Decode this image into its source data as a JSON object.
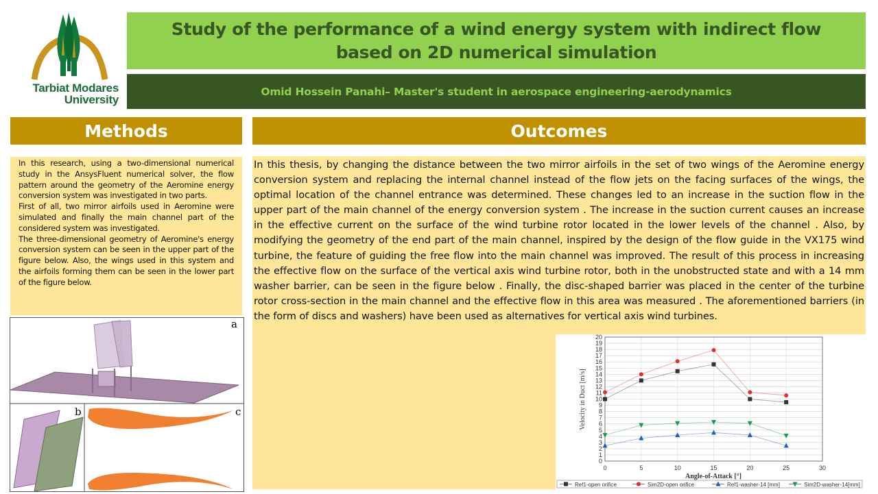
{
  "logo": {
    "text_line1": "Tarbiat Modares",
    "text_line2": "University",
    "colors": {
      "arch": "#c8961e",
      "trees": "#0f7a3a"
    }
  },
  "header": {
    "title": "Study of the performance of a wind energy system with indirect flow based on 2D numerical simulation",
    "author": "Omid Hossein Panahi– Master's student in aerospace engineering-aerodynamics"
  },
  "methods": {
    "heading": "Methods",
    "paragraphs": [
      "In this research, using a two-dimensional numerical study in the AnsysFluent numerical solver, the flow pattern around the geometry of the Aeromine energy conversion system was investigated in two parts.",
      "First of all, two mirror airfoils used in Aeromine were simulated and finally the main channel part of the considered system was investigated.",
      "The three-dimensional geometry of Aeromine's energy conversion system can be seen in the upper part of the figure below. Also, the wings used in this system and the airfoils forming them can be seen in the lower part of the figure below."
    ],
    "figure_labels": {
      "a": "a",
      "b": "b",
      "c": "c"
    }
  },
  "outcomes": {
    "heading": "Outcomes",
    "text": "In this thesis, by changing the distance between the two mirror airfoils in the set of two wings of the Aeromine energy conversion system and replacing the internal channel instead of the flow jets on the facing surfaces of the wings, the optimal location of the channel entrance was determined. These changes led to an increase in the suction flow in the upper part of the main channel of the energy conversion system . The increase in the suction current causes an increase in the effective current on the surface of the wind turbine rotor located in the lower levels of the channel . Also, by modifying the geometry of the end part of the main channel, inspired by the design of the flow guide in the VX175 wind turbine, the feature of guiding the free flow into the main channel was improved. The result of this process in increasing the effective flow on the surface of the vertical axis wind turbine rotor, both in the unobstructed state and with a 14 mm washer barrier, can be seen in the figure below . Finally, the disc-shaped barrier was placed in the center of the turbine rotor cross-section in the main channel and the effective flow in this area was measured . The aforementioned barriers (in the form of discs and washers) have been used as alternatives for vertical axis wind turbines."
  },
  "colors": {
    "title_bg": "#92d050",
    "author_bg": "#375623",
    "section_header": "#bf9000",
    "box_bg": "#ffe699"
  },
  "chart_data": {
    "type": "line",
    "xlabel": "Angle-of-Attack [°]",
    "ylabel": "Velocity in Duct [m/s]",
    "xlim": [
      0,
      30
    ],
    "ylim": [
      0,
      20
    ],
    "xticks": [
      0,
      5,
      10,
      15,
      20,
      25,
      30
    ],
    "yticks": [
      0,
      1,
      2,
      3,
      4,
      5,
      6,
      7,
      8,
      9,
      10,
      11,
      12,
      13,
      14,
      15,
      16,
      17,
      18,
      19,
      20
    ],
    "grid": true,
    "legend_position": "bottom",
    "x": [
      0,
      5,
      10,
      15,
      20,
      25
    ],
    "series": [
      {
        "name": "Ref1-open orifice",
        "marker": "square",
        "color": "#333333",
        "values": [
          10,
          13,
          14.5,
          15.6,
          10,
          9.5
        ]
      },
      {
        "name": "Sim2D-open orifice",
        "marker": "circle",
        "color": "#e0302a",
        "values": [
          11.1,
          14,
          16.1,
          17.9,
          11.1,
          10.6
        ]
      },
      {
        "name": "Ref1-washer-14 [mm]",
        "marker": "triangle-up",
        "color": "#1f5fbf",
        "values": [
          2.5,
          3.7,
          4.2,
          4.6,
          4.2,
          2.5
        ]
      },
      {
        "name": "Sim2D-washer-14[mm]",
        "marker": "triangle-down",
        "color": "#1a9a50",
        "values": [
          4.2,
          5.8,
          6.1,
          6.3,
          6.1,
          4.1
        ]
      }
    ]
  }
}
